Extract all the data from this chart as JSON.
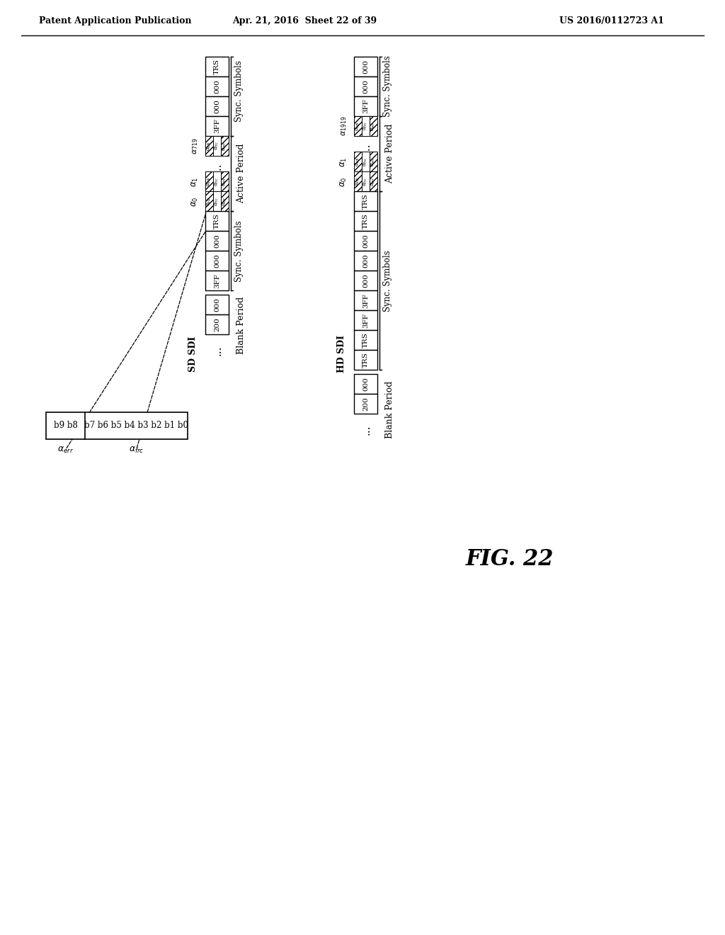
{
  "header_left": "Patent Application Publication",
  "header_mid": "Apr. 21, 2016  Sheet 22 of 39",
  "header_right": "US 2016/0112723 A1",
  "fig_label": "FIG. 22",
  "background": "#ffffff"
}
